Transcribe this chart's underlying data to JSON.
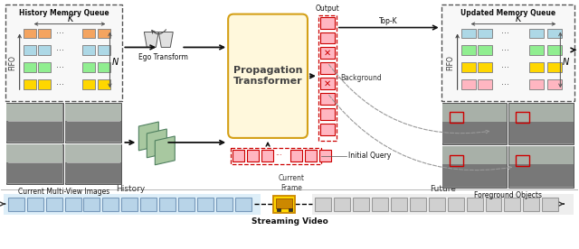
{
  "fig_width": 6.4,
  "fig_height": 2.76,
  "dpi": 100,
  "background": "#ffffff",
  "history_memory_label": "History Memory Queue",
  "updated_memory_label": "Updated Memory Queue",
  "ego_transform_label": "Ego Transform",
  "propagation_label": "Propagation\nTransformer",
  "output_label": "Output",
  "topk_label": "Top-K",
  "background_label": "Background",
  "initial_query_label": "Initial Query",
  "current_multi_view_label": "Current Multi-View Images",
  "foreground_label": "Foreground Objects",
  "fifo_label": "FIFO",
  "k_label": "K",
  "n_label": "N",
  "history_label": "History",
  "current_frame_label": "Current\nFrame",
  "future_label": "Future",
  "streaming_video_label": "Streaming Video",
  "memory_row_colors_left": [
    "#f4a460",
    "#add8e6",
    "#90ee90",
    "#ffd700"
  ],
  "memory_row_colors_right": [
    "#add8e6",
    "#90ee90",
    "#ffd700",
    "#ffb6c1"
  ],
  "propagation_color": "#fff8dc",
  "propagation_edge": "#d4a017",
  "query_color": "#ffb6c1",
  "query_edge": "#cc0000",
  "history_bg": "#ddeef8",
  "future_bg": "#eeeeee",
  "frame_color_hist": "#b8d4e8",
  "frame_color_future": "#d0d0d0",
  "frame_edge_hist": "#7799bb",
  "frame_edge_future": "#999999"
}
